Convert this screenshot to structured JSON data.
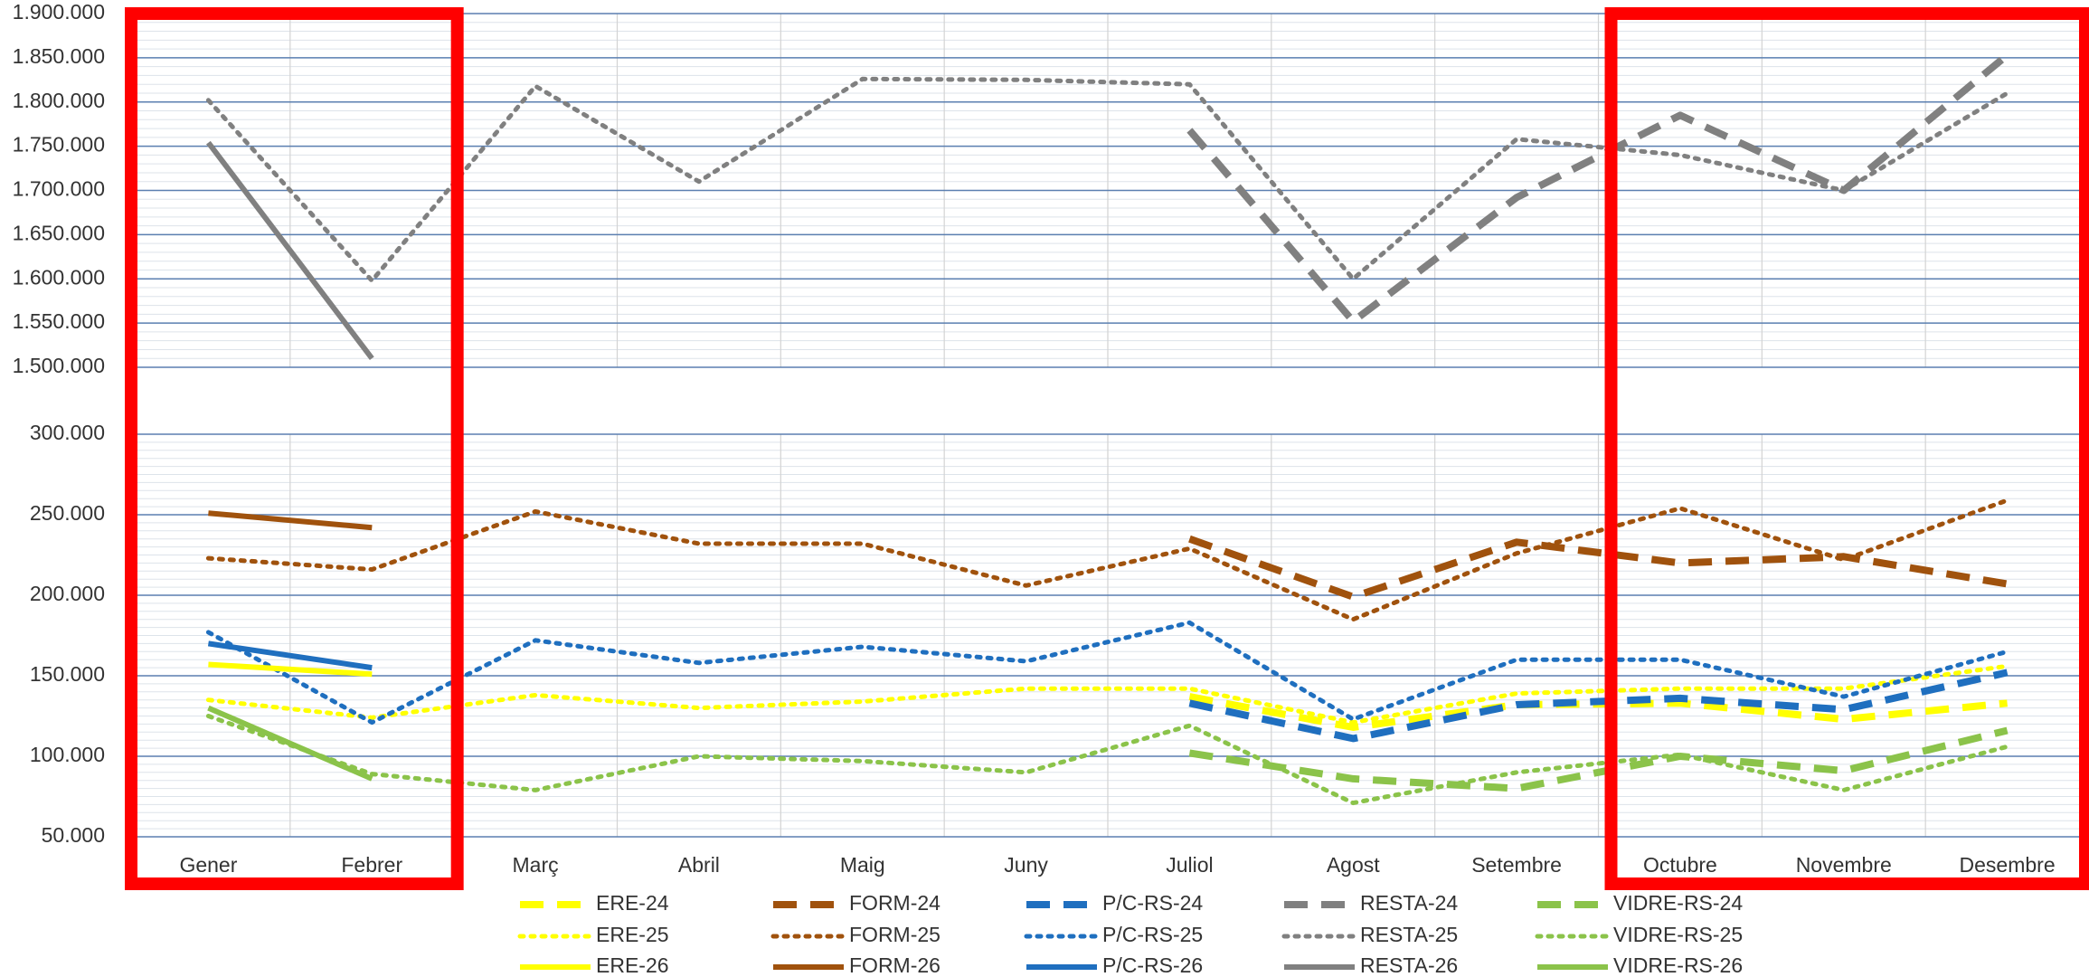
{
  "chart_data": {
    "type": "line",
    "categories": [
      "Gener",
      "Febrer",
      "Març",
      "Abril",
      "Maig",
      "Juny",
      "Juliol",
      "Agost",
      "Setembre",
      "Octubre",
      "Novembre",
      "Desembre"
    ],
    "upper_axis": {
      "ylim": [
        1500000,
        1900000
      ],
      "ticks": [
        "1.900.000",
        "1.850.000",
        "1.800.000",
        "1.750.000",
        "1.700.000",
        "1.650.000",
        "1.600.000",
        "1.550.000",
        "1.500.000"
      ],
      "tick_values": [
        1900000,
        1850000,
        1800000,
        1750000,
        1700000,
        1650000,
        1600000,
        1550000,
        1500000
      ]
    },
    "lower_axis": {
      "ylim": [
        50000,
        300000
      ],
      "ticks": [
        "300.000",
        "250.000",
        "200.000",
        "150.000",
        "100.000",
        "50.000"
      ],
      "tick_values": [
        300000,
        250000,
        200000,
        150000,
        100000,
        50000
      ]
    },
    "series": [
      {
        "name": "ERE-24",
        "axis": "lower",
        "style": "dash",
        "color": "#FFFF00",
        "values": [
          null,
          null,
          null,
          null,
          null,
          null,
          137000,
          118000,
          132000,
          133000,
          123000,
          133000
        ]
      },
      {
        "name": "FORM-24",
        "axis": "lower",
        "style": "dash",
        "color": "#A0520D",
        "values": [
          null,
          null,
          null,
          null,
          null,
          null,
          235000,
          199000,
          233000,
          220000,
          224000,
          207000
        ]
      },
      {
        "name": "P/C-RS-24",
        "axis": "lower",
        "style": "dash",
        "color": "#1F6FBF",
        "values": [
          null,
          null,
          null,
          null,
          null,
          null,
          133000,
          111000,
          132000,
          136000,
          129000,
          152000
        ]
      },
      {
        "name": "RESTA-24",
        "axis": "upper",
        "style": "dash",
        "color": "#808080",
        "values": [
          null,
          null,
          null,
          null,
          null,
          null,
          1768000,
          1552000,
          1692000,
          1785000,
          1700000,
          1853000
        ]
      },
      {
        "name": "VIDRE-RS-24",
        "axis": "lower",
        "style": "dash",
        "color": "#8BC34A",
        "values": [
          null,
          null,
          null,
          null,
          null,
          null,
          102000,
          86000,
          80000,
          100000,
          91000,
          116000
        ]
      },
      {
        "name": "ERE-25",
        "axis": "lower",
        "style": "dot",
        "color": "#FFFF00",
        "values": [
          135000,
          124000,
          138000,
          130000,
          134000,
          142000,
          142000,
          121000,
          139000,
          142000,
          142000,
          156000
        ]
      },
      {
        "name": "FORM-25",
        "axis": "lower",
        "style": "dot",
        "color": "#A0520D",
        "values": [
          223000,
          216000,
          252000,
          232000,
          232000,
          206000,
          229000,
          185000,
          226000,
          254000,
          222000,
          259000
        ]
      },
      {
        "name": "P/C-RS-25",
        "axis": "lower",
        "style": "dot",
        "color": "#1F6FBF",
        "values": [
          177000,
          121000,
          172000,
          158000,
          168000,
          159000,
          183000,
          123000,
          160000,
          160000,
          137000,
          165000
        ]
      },
      {
        "name": "RESTA-25",
        "axis": "upper",
        "style": "dot",
        "color": "#808080",
        "values": [
          1802000,
          1598000,
          1818000,
          1710000,
          1826000,
          1825000,
          1820000,
          1600000,
          1758000,
          1740000,
          1700000,
          1810000
        ]
      },
      {
        "name": "VIDRE-RS-25",
        "axis": "lower",
        "style": "dot",
        "color": "#8BC34A",
        "values": [
          125000,
          89000,
          79000,
          100000,
          97000,
          90000,
          119000,
          71000,
          90000,
          101000,
          79000,
          106000
        ]
      },
      {
        "name": "ERE-26",
        "axis": "lower",
        "style": "solid",
        "color": "#FFFF00",
        "values": [
          157000,
          151000,
          null,
          null,
          null,
          null,
          null,
          null,
          null,
          null,
          null,
          null
        ]
      },
      {
        "name": "FORM-26",
        "axis": "lower",
        "style": "solid",
        "color": "#A0520D",
        "values": [
          251000,
          242000,
          null,
          null,
          null,
          null,
          null,
          null,
          null,
          null,
          null,
          null
        ]
      },
      {
        "name": "P/C-RS-26",
        "axis": "lower",
        "style": "solid",
        "color": "#1F6FBF",
        "values": [
          170000,
          155000,
          null,
          null,
          null,
          null,
          null,
          null,
          null,
          null,
          null,
          null
        ]
      },
      {
        "name": "RESTA-26",
        "axis": "upper",
        "style": "solid",
        "color": "#808080",
        "values": [
          1754000,
          1510000,
          null,
          null,
          null,
          null,
          null,
          null,
          null,
          null,
          null,
          null
        ]
      },
      {
        "name": "VIDRE-RS-26",
        "axis": "lower",
        "style": "solid",
        "color": "#8BC34A",
        "values": [
          130000,
          86000,
          null,
          null,
          null,
          null,
          null,
          null,
          null,
          null,
          null,
          null
        ]
      }
    ],
    "legend_order": [
      [
        "ERE-24",
        "FORM-24",
        "P/C-RS-24",
        "RESTA-24",
        "VIDRE-RS-24"
      ],
      [
        "ERE-25",
        "FORM-25",
        "P/C-RS-25",
        "RESTA-25",
        "VIDRE-RS-25"
      ],
      [
        "ERE-26",
        "FORM-26",
        "P/C-RS-26",
        "RESTA-26",
        "VIDRE-RS-26"
      ]
    ],
    "legend_placement": "bottom",
    "grid": true,
    "highlight_color": "#FF0000",
    "highlight_groups": [
      [
        "Gener",
        "Febrer"
      ],
      [
        "Octubre",
        "Novembre",
        "Desembre"
      ]
    ]
  }
}
